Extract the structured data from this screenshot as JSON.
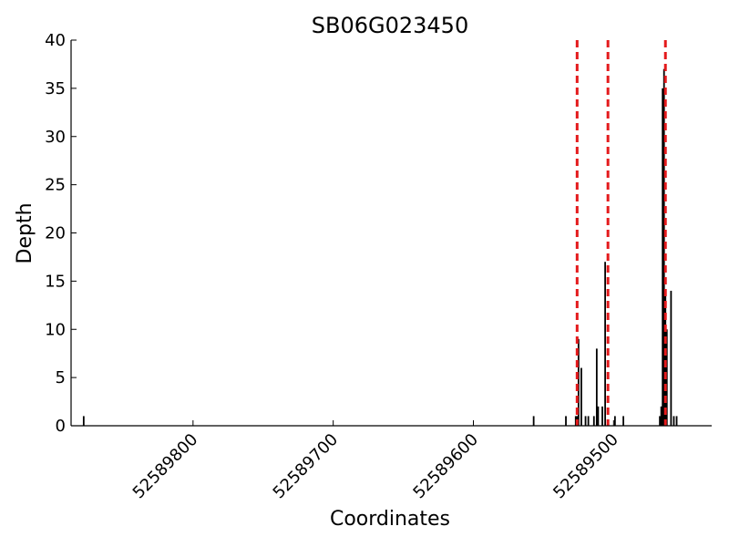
{
  "chart_data": {
    "type": "bar",
    "title": "SB06G023450",
    "xlabel": "Coordinates",
    "ylabel": "Depth",
    "x_axis_reversed": true,
    "xlim": [
      52589887,
      52589430
    ],
    "ylim": [
      0,
      40
    ],
    "yticks": [
      0,
      5,
      10,
      15,
      20,
      25,
      30,
      35,
      40
    ],
    "xticks": [
      52589800,
      52589700,
      52589600,
      52589500
    ],
    "grid": false,
    "series": [
      {
        "values": [
          {
            "x": 52589878,
            "y": 1
          },
          {
            "x": 52589557,
            "y": 1
          },
          {
            "x": 52589534,
            "y": 1
          },
          {
            "x": 52589527,
            "y": 1
          },
          {
            "x": 52589526,
            "y": 1
          },
          {
            "x": 52589525,
            "y": 9
          },
          {
            "x": 52589523,
            "y": 6
          },
          {
            "x": 52589520,
            "y": 1
          },
          {
            "x": 52589518,
            "y": 1
          },
          {
            "x": 52589514,
            "y": 1
          },
          {
            "x": 52589512,
            "y": 8
          },
          {
            "x": 52589511,
            "y": 2
          },
          {
            "x": 52589508,
            "y": 2
          },
          {
            "x": 52589506,
            "y": 17
          },
          {
            "x": 52589499,
            "y": 1
          },
          {
            "x": 52589493,
            "y": 1
          },
          {
            "x": 52589467,
            "y": 1
          },
          {
            "x": 52589466,
            "y": 2
          },
          {
            "x": 52589465,
            "y": 35
          },
          {
            "x": 52589464,
            "y": 37
          },
          {
            "x": 52589463,
            "y": 14
          },
          {
            "x": 52589462,
            "y": 10
          },
          {
            "x": 52589459,
            "y": 14
          },
          {
            "x": 52589457,
            "y": 1
          },
          {
            "x": 52589455,
            "y": 1
          }
        ]
      }
    ],
    "vlines": [
      {
        "x": 52589526,
        "color": "#e41a1c",
        "style": "dashed"
      },
      {
        "x": 52589504,
        "color": "#e41a1c",
        "style": "dashed"
      },
      {
        "x": 52589463,
        "color": "#e41a1c",
        "style": "dashed"
      }
    ],
    "colors": {
      "bar": "#000000",
      "vline": "#e41a1c",
      "axis": "#000000"
    }
  }
}
